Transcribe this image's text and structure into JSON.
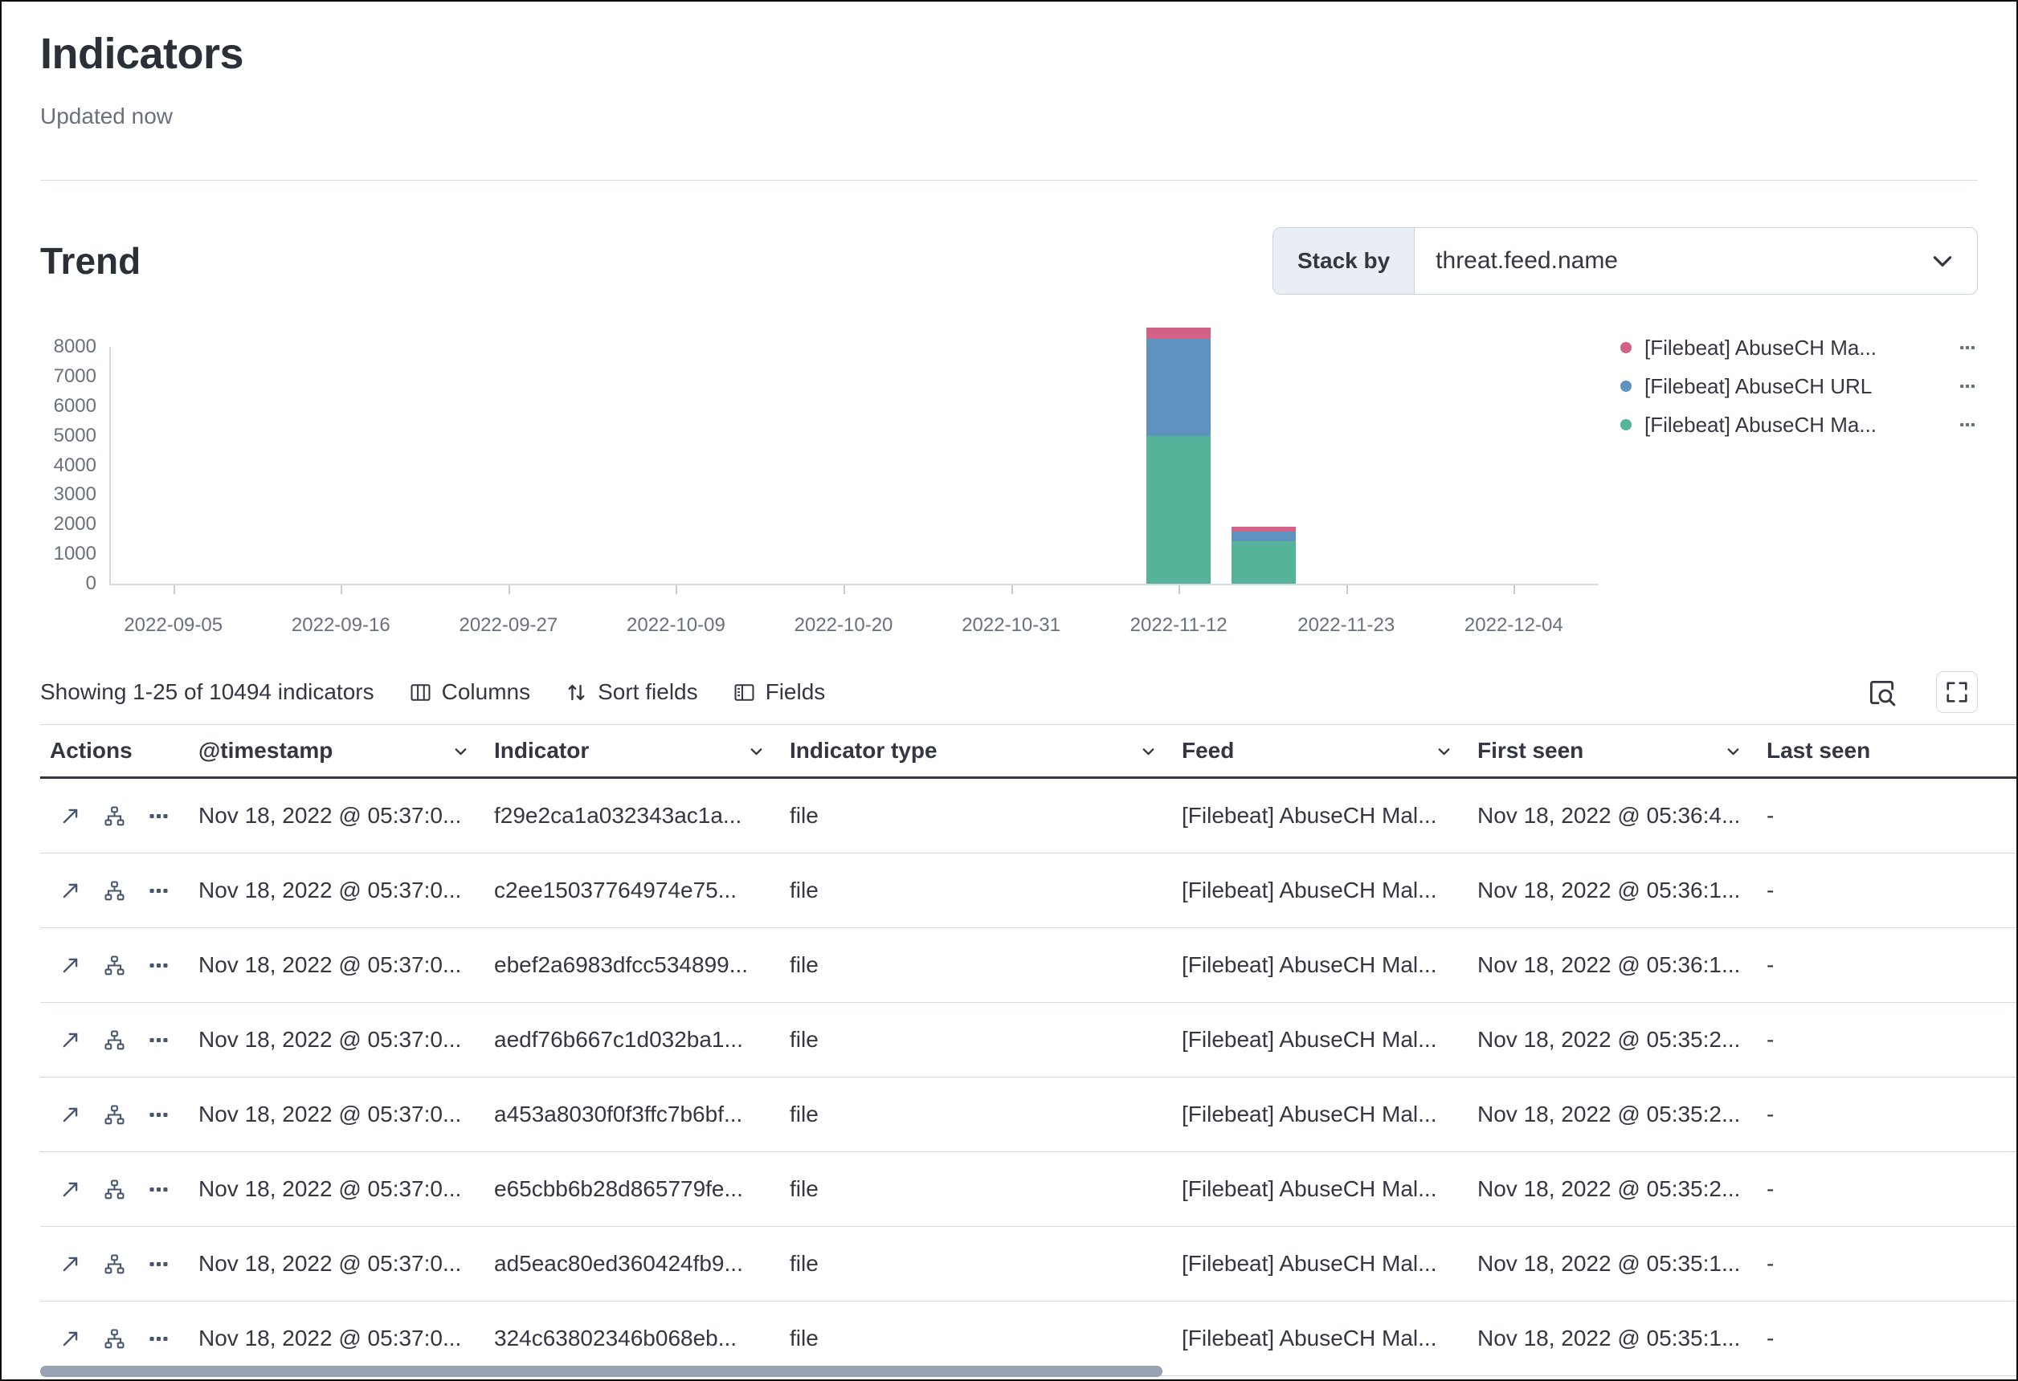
{
  "header": {
    "title": "Indicators",
    "updated": "Updated now"
  },
  "trend": {
    "title": "Trend",
    "stack_by_label": "Stack by",
    "stack_by_value": "threat.feed.name"
  },
  "chart_data": {
    "type": "bar",
    "stacked": true,
    "title": "Trend",
    "xlabel": "",
    "ylabel": "",
    "ylim": [
      0,
      8000
    ],
    "grid": false,
    "legend_position": "right",
    "y_ticks": [
      0,
      1000,
      2000,
      3000,
      4000,
      5000,
      6000,
      7000,
      8000
    ],
    "x_axis_labels": [
      "2022-09-05",
      "2022-09-16",
      "2022-09-27",
      "2022-10-09",
      "2022-10-20",
      "2022-10-31",
      "2022-11-12",
      "2022-11-23",
      "2022-12-04"
    ],
    "x_first_tick_frac": 0.043,
    "x_last_tick_frac": 0.943,
    "legend": [
      {
        "label": "[Filebeat] AbuseCH Ma...",
        "color": "#d36086"
      },
      {
        "label": "[Filebeat] AbuseCH URL",
        "color": "#6092c0"
      },
      {
        "label": "[Filebeat] AbuseCH Ma...",
        "color": "#54b399"
      }
    ],
    "bars": [
      {
        "x_label": "2022-11-12",
        "x_frac": 0.718,
        "segments": [
          {
            "series": 2,
            "value": 5000
          },
          {
            "series": 1,
            "value": 3270
          },
          {
            "series": 0,
            "value": 380
          }
        ]
      },
      {
        "x_label": "",
        "x_frac": 0.775,
        "segments": [
          {
            "series": 2,
            "value": 1450
          },
          {
            "series": 1,
            "value": 300
          },
          {
            "series": 0,
            "value": 170
          }
        ]
      }
    ]
  },
  "toolbar": {
    "showing": "Showing 1-25 of 10494 indicators",
    "columns_label": "Columns",
    "sort_label": "Sort fields",
    "fields_label": "Fields"
  },
  "table": {
    "columns": [
      {
        "label": "Actions",
        "sortable": false
      },
      {
        "label": "@timestamp",
        "sortable": true
      },
      {
        "label": "Indicator",
        "sortable": true
      },
      {
        "label": "Indicator type",
        "sortable": true
      },
      {
        "label": "Feed",
        "sortable": true
      },
      {
        "label": "First seen",
        "sortable": true
      },
      {
        "label": "Last seen",
        "sortable": false
      }
    ],
    "rows": [
      {
        "timestamp": "Nov 18, 2022 @ 05:37:0...",
        "indicator": "f29e2ca1a032343ac1a...",
        "type": "file",
        "feed": "[Filebeat] AbuseCH Mal...",
        "first_seen": "Nov 18, 2022 @ 05:36:4...",
        "last_seen": "-"
      },
      {
        "timestamp": "Nov 18, 2022 @ 05:37:0...",
        "indicator": "c2ee15037764974e75...",
        "type": "file",
        "feed": "[Filebeat] AbuseCH Mal...",
        "first_seen": "Nov 18, 2022 @ 05:36:1...",
        "last_seen": "-"
      },
      {
        "timestamp": "Nov 18, 2022 @ 05:37:0...",
        "indicator": "ebef2a6983dfcc534899...",
        "type": "file",
        "feed": "[Filebeat] AbuseCH Mal...",
        "first_seen": "Nov 18, 2022 @ 05:36:1...",
        "last_seen": "-"
      },
      {
        "timestamp": "Nov 18, 2022 @ 05:37:0...",
        "indicator": "aedf76b667c1d032ba1...",
        "type": "file",
        "feed": "[Filebeat] AbuseCH Mal...",
        "first_seen": "Nov 18, 2022 @ 05:35:2...",
        "last_seen": "-"
      },
      {
        "timestamp": "Nov 18, 2022 @ 05:37:0...",
        "indicator": "a453a8030f0f3ffc7b6bf...",
        "type": "file",
        "feed": "[Filebeat] AbuseCH Mal...",
        "first_seen": "Nov 18, 2022 @ 05:35:2...",
        "last_seen": "-"
      },
      {
        "timestamp": "Nov 18, 2022 @ 05:37:0...",
        "indicator": "e65cbb6b28d865779fe...",
        "type": "file",
        "feed": "[Filebeat] AbuseCH Mal...",
        "first_seen": "Nov 18, 2022 @ 05:35:2...",
        "last_seen": "-"
      },
      {
        "timestamp": "Nov 18, 2022 @ 05:37:0...",
        "indicator": "ad5eac80ed360424fb9...",
        "type": "file",
        "feed": "[Filebeat] AbuseCH Mal...",
        "first_seen": "Nov 18, 2022 @ 05:35:1...",
        "last_seen": "-"
      },
      {
        "timestamp": "Nov 18, 2022 @ 05:37:0...",
        "indicator": "324c63802346b068eb...",
        "type": "file",
        "feed": "[Filebeat] AbuseCH Mal...",
        "first_seen": "Nov 18, 2022 @ 05:35:1...",
        "last_seen": "-"
      }
    ]
  }
}
